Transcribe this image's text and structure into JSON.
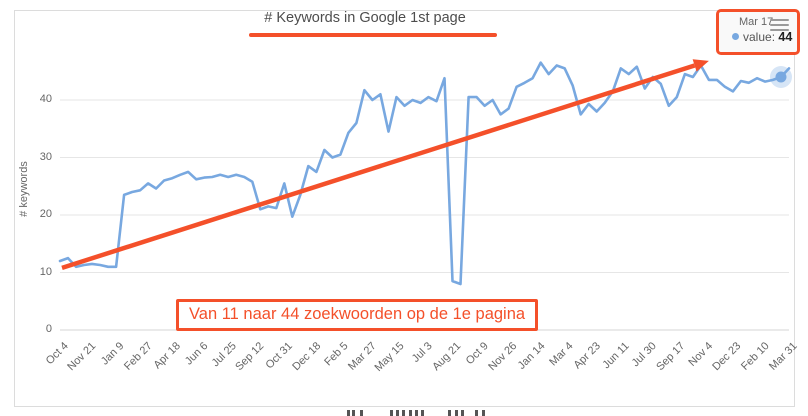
{
  "accent_color": "#f4502a",
  "line_color": "#78a8e0",
  "header": {
    "title": "# Keywords in Google 1st page"
  },
  "tooltip": {
    "date": "Mar 17",
    "series_label": "value:",
    "value": "44"
  },
  "annotation": {
    "text": "Van 11 naar 44 zoekwoorden op de 1e pagina"
  },
  "partial_caption_cut_off": true,
  "chart_data": {
    "type": "line",
    "title": "# Keywords in Google 1st page",
    "xlabel": "",
    "ylabel": "# keywords",
    "y_ticks": [
      0,
      10,
      20,
      30,
      40
    ],
    "ylim": [
      0,
      47.5
    ],
    "grid": "horizontal",
    "legend": "none",
    "x_tick_labels": [
      "Oct 4",
      "Nov 21",
      "Jan 9",
      "Feb 27",
      "Apr 18",
      "Jun 6",
      "Jul 25",
      "Sep 12",
      "Oct 31",
      "Dec 18",
      "Feb 5",
      "Mar 27",
      "May 15",
      "Jul 3",
      "Aug 21",
      "Oct 9",
      "Nov 26",
      "Jan 14",
      "Mar 4",
      "Apr 23",
      "Jun 11",
      "Jul 30",
      "Sep 17",
      "Nov 4",
      "Dec 23",
      "Feb 10",
      "Mar 31"
    ],
    "samples_per_tick_interval": 3.5,
    "sampling_note": "values estimated at ~2-week intervals, ticks every 7 weeks",
    "series": [
      {
        "name": "value",
        "values": [
          12,
          12.5,
          11,
          11.3,
          11.5,
          11.3,
          11,
          11,
          23.5,
          24,
          24.3,
          25.5,
          24.6,
          26,
          26.4,
          27,
          27.5,
          26.2,
          26.5,
          26.6,
          27,
          26.6,
          27,
          26.6,
          25.8,
          21,
          21.5,
          21.2,
          25.5,
          19.7,
          23.5,
          28.5,
          27.5,
          31.3,
          30,
          30.5,
          34.3,
          36,
          41.7,
          40,
          41,
          34.5,
          40.5,
          39,
          40,
          39.5,
          40.5,
          39.8,
          43.8,
          8.5,
          8,
          40.5,
          40.5,
          39,
          40,
          37.5,
          38.5,
          42.3,
          43,
          43.8,
          46.5,
          44.5,
          46,
          45.5,
          42.5,
          37.5,
          39.3,
          38,
          39.5,
          41.5,
          45.5,
          44.5,
          45.8,
          42,
          44,
          42.8,
          39,
          40.5,
          44.5,
          44,
          46,
          43.5,
          43.5,
          42.3,
          41.5,
          43.3,
          43,
          43.8,
          43.2,
          43.5,
          44,
          45.5
        ]
      }
    ],
    "highlight_point": {
      "index": 90,
      "date": "Mar 17",
      "value": 44
    },
    "trend_arrow": {
      "from": {
        "index": 0.25,
        "value": 10.8
      },
      "to": {
        "index": 81,
        "value": 46.8
      }
    }
  }
}
